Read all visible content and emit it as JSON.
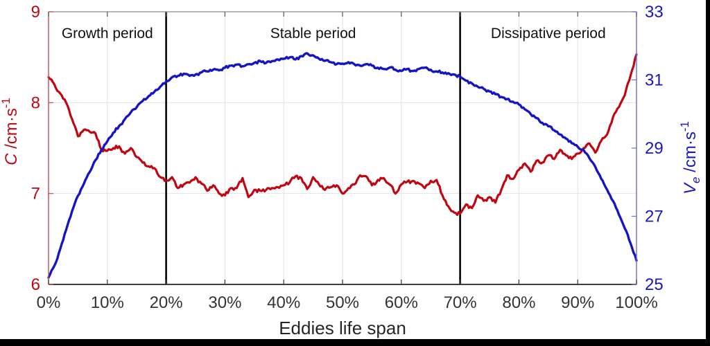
{
  "chart_data": {
    "type": "line",
    "title": "",
    "xlabel": "Eddies life span",
    "axes": {
      "x": {
        "min": 0,
        "max": 100,
        "tick_values": [
          0,
          10,
          20,
          30,
          40,
          50,
          60,
          70,
          80,
          90,
          100
        ],
        "tick_labels": [
          "0%",
          "10%",
          "20%",
          "30%",
          "40%",
          "50%",
          "60%",
          "70%",
          "80%",
          "90%",
          "100%"
        ],
        "title": "Eddies life span",
        "color": "#333333"
      },
      "y_left": {
        "symbol": "C",
        "unit": " /cm·s",
        "sup": "-1",
        "min": 6,
        "max": 9,
        "tick_values": [
          6,
          7,
          8,
          9
        ],
        "tick_labels": [
          "6",
          "7",
          "8",
          "9"
        ],
        "color": "#c00711"
      },
      "y_right": {
        "symbol": "V",
        "sub": "e",
        "unit": " /cm·s",
        "sup": "-1",
        "min": 25,
        "max": 33,
        "tick_values": [
          25,
          27,
          29,
          31,
          33
        ],
        "tick_labels": [
          "25",
          "27",
          "29",
          "31",
          "33"
        ],
        "color": "#1717c4"
      }
    },
    "grid": {
      "on": true,
      "color": "#e2e2e2",
      "horizontal_follows": "y_left"
    },
    "regions": [
      {
        "label": "Growth period",
        "from": 0,
        "to": 20
      },
      {
        "label": "Stable period",
        "from": 20,
        "to": 70
      },
      {
        "label": "Dissipative period",
        "from": 70,
        "to": 100
      }
    ],
    "dividers": [
      20,
      70
    ],
    "divider_color": "#000000",
    "series": [
      {
        "name": "C",
        "axis": "left",
        "color": "#c00711",
        "width": 3.2,
        "noise": 0.022,
        "x0": 0,
        "dx": 1,
        "values": [
          8.28,
          8.2,
          8.1,
          8.0,
          7.82,
          7.63,
          7.7,
          7.68,
          7.66,
          7.48,
          7.47,
          7.5,
          7.52,
          7.44,
          7.5,
          7.4,
          7.34,
          7.3,
          7.28,
          7.18,
          7.14,
          7.18,
          7.06,
          7.1,
          7.12,
          7.18,
          7.11,
          7.03,
          7.09,
          7.0,
          6.98,
          7.06,
          7.06,
          7.17,
          6.96,
          7.04,
          7.03,
          7.04,
          7.06,
          7.07,
          7.09,
          7.12,
          7.19,
          7.17,
          7.05,
          7.18,
          7.1,
          7.04,
          7.07,
          7.09,
          7.0,
          7.06,
          7.1,
          7.2,
          7.19,
          7.09,
          7.15,
          7.17,
          7.1,
          7.0,
          7.1,
          7.13,
          7.14,
          7.11,
          7.06,
          7.14,
          7.15,
          6.98,
          6.86,
          6.79,
          6.78,
          6.88,
          6.84,
          6.98,
          6.92,
          6.96,
          6.9,
          7.04,
          7.2,
          7.16,
          7.26,
          7.33,
          7.24,
          7.36,
          7.34,
          7.42,
          7.38,
          7.48,
          7.42,
          7.38,
          7.44,
          7.5,
          7.55,
          7.45,
          7.58,
          7.65,
          7.84,
          7.95,
          8.08,
          8.3,
          8.53
        ]
      },
      {
        "name": "Ve",
        "axis": "right",
        "color": "#1515c3",
        "width": 3.4,
        "noise": 0.045,
        "x0": 0,
        "dx": 1,
        "values": [
          25.2,
          25.55,
          26.05,
          26.6,
          27.15,
          27.6,
          27.95,
          28.3,
          28.65,
          28.95,
          29.2,
          29.45,
          29.65,
          29.85,
          30.05,
          30.2,
          30.38,
          30.52,
          30.65,
          30.8,
          30.95,
          31.08,
          31.12,
          31.18,
          31.12,
          31.16,
          31.22,
          31.25,
          31.3,
          31.28,
          31.36,
          31.42,
          31.45,
          31.4,
          31.46,
          31.5,
          31.55,
          31.5,
          31.55,
          31.6,
          31.62,
          31.66,
          31.6,
          31.7,
          31.78,
          31.72,
          31.62,
          31.56,
          31.52,
          31.46,
          31.48,
          31.52,
          31.46,
          31.42,
          31.46,
          31.42,
          31.36,
          31.32,
          31.36,
          31.3,
          31.26,
          31.32,
          31.26,
          31.32,
          31.36,
          31.3,
          31.25,
          31.22,
          31.2,
          31.16,
          31.1,
          30.98,
          30.9,
          30.8,
          30.74,
          30.66,
          30.58,
          30.5,
          30.44,
          30.36,
          30.28,
          30.14,
          30.0,
          29.88,
          29.74,
          29.64,
          29.52,
          29.4,
          29.28,
          29.14,
          29.04,
          28.95,
          28.7,
          28.45,
          28.1,
          27.78,
          27.45,
          27.05,
          26.65,
          26.2,
          25.7
        ]
      }
    ]
  }
}
